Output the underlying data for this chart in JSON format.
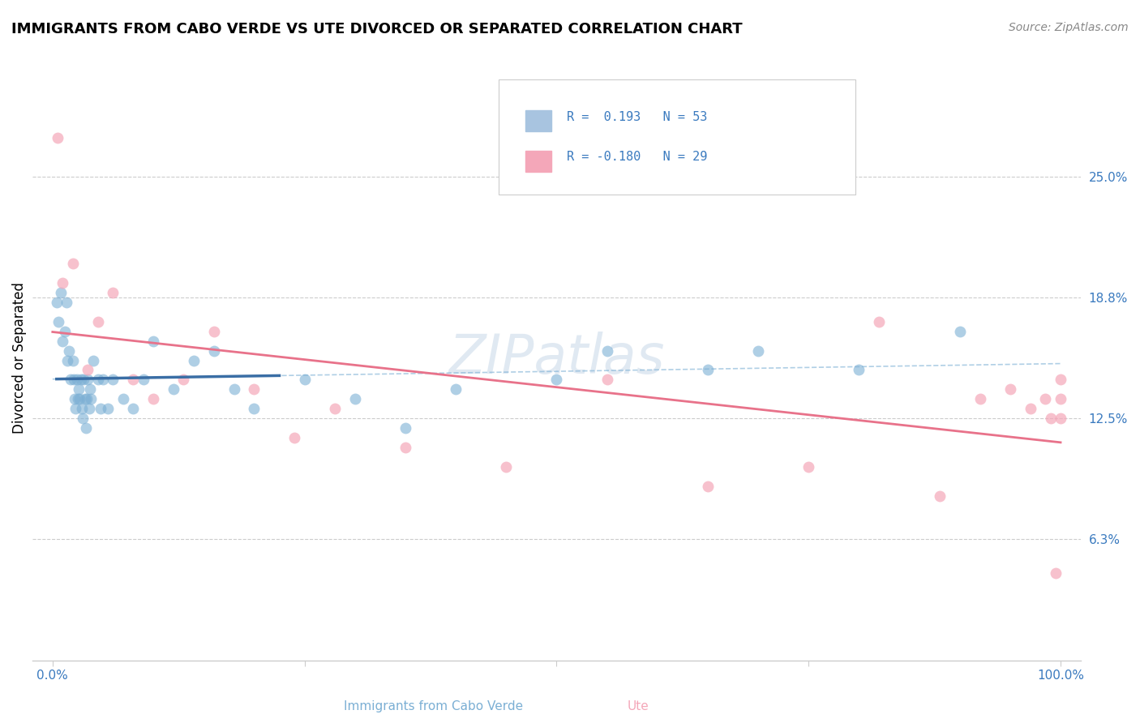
{
  "title": "IMMIGRANTS FROM CABO VERDE VS UTE DIVORCED OR SEPARATED CORRELATION CHART",
  "source": "Source: ZipAtlas.com",
  "ylabel": "Divorced or Separated",
  "xlim": [
    -2,
    102
  ],
  "ylim": [
    0.0,
    31.25
  ],
  "yticks": [
    6.25,
    12.5,
    18.75,
    25.0
  ],
  "ytick_labels": [
    "6.3%",
    "12.5%",
    "18.8%",
    "25.0%"
  ],
  "xticks": [
    0.0,
    25.0,
    50.0,
    75.0,
    100.0
  ],
  "xtick_labels": [
    "0.0%",
    "",
    "",
    "",
    "100.0%"
  ],
  "blue_color": "#7bafd4",
  "pink_color": "#f4a7b9",
  "trend_blue_color": "#3a6ea5",
  "trend_pink_color": "#e8728a",
  "dashed_blue_color": "#7bafd4",
  "watermark": "ZIPatlas",
  "xlabel_blue": "Immigrants from Cabo Verde",
  "xlabel_pink": "Ute",
  "legend_r1": "R =  0.193",
  "legend_n1": "N = 53",
  "legend_r2": "R = -0.180",
  "legend_n2": "N = 29",
  "legend_color1": "#a8c4e0",
  "legend_color2": "#f4a7b9",
  "text_blue": "#3a7abf",
  "blue_x": [
    0.4,
    0.6,
    0.8,
    1.0,
    1.2,
    1.4,
    1.5,
    1.6,
    1.8,
    2.0,
    2.1,
    2.2,
    2.3,
    2.4,
    2.5,
    2.6,
    2.7,
    2.8,
    2.9,
    3.0,
    3.1,
    3.2,
    3.3,
    3.4,
    3.5,
    3.6,
    3.7,
    3.8,
    4.0,
    4.5,
    4.8,
    5.0,
    5.5,
    6.0,
    7.0,
    8.0,
    9.0,
    10.0,
    12.0,
    14.0,
    16.0,
    18.0,
    20.0,
    25.0,
    30.0,
    35.0,
    40.0,
    50.0,
    55.0,
    65.0,
    70.0,
    80.0,
    90.0
  ],
  "blue_y": [
    18.5,
    17.5,
    19.0,
    16.5,
    17.0,
    18.5,
    15.5,
    16.0,
    14.5,
    15.5,
    14.5,
    13.5,
    13.0,
    14.5,
    13.5,
    14.0,
    13.5,
    14.5,
    13.0,
    12.5,
    14.5,
    13.5,
    12.0,
    13.5,
    14.5,
    13.0,
    14.0,
    13.5,
    15.5,
    14.5,
    13.0,
    14.5,
    13.0,
    14.5,
    13.5,
    13.0,
    14.5,
    16.5,
    14.0,
    15.5,
    16.0,
    14.0,
    13.0,
    14.5,
    13.5,
    12.0,
    14.0,
    14.5,
    16.0,
    15.0,
    16.0,
    15.0,
    17.0
  ],
  "pink_x": [
    0.5,
    1.0,
    2.0,
    3.5,
    4.5,
    6.0,
    8.0,
    10.0,
    13.0,
    16.0,
    20.0,
    24.0,
    28.0,
    35.0,
    45.0,
    55.0,
    65.0,
    75.0,
    82.0,
    88.0,
    92.0,
    95.0,
    97.0,
    98.5,
    99.0,
    99.5,
    100.0,
    100.0,
    100.0
  ],
  "pink_y": [
    27.0,
    19.5,
    20.5,
    15.0,
    17.5,
    19.0,
    14.5,
    13.5,
    14.5,
    17.0,
    14.0,
    11.5,
    13.0,
    11.0,
    10.0,
    14.5,
    9.0,
    10.0,
    17.5,
    8.5,
    13.5,
    14.0,
    13.0,
    13.5,
    12.5,
    4.5,
    12.5,
    14.5,
    13.5
  ]
}
